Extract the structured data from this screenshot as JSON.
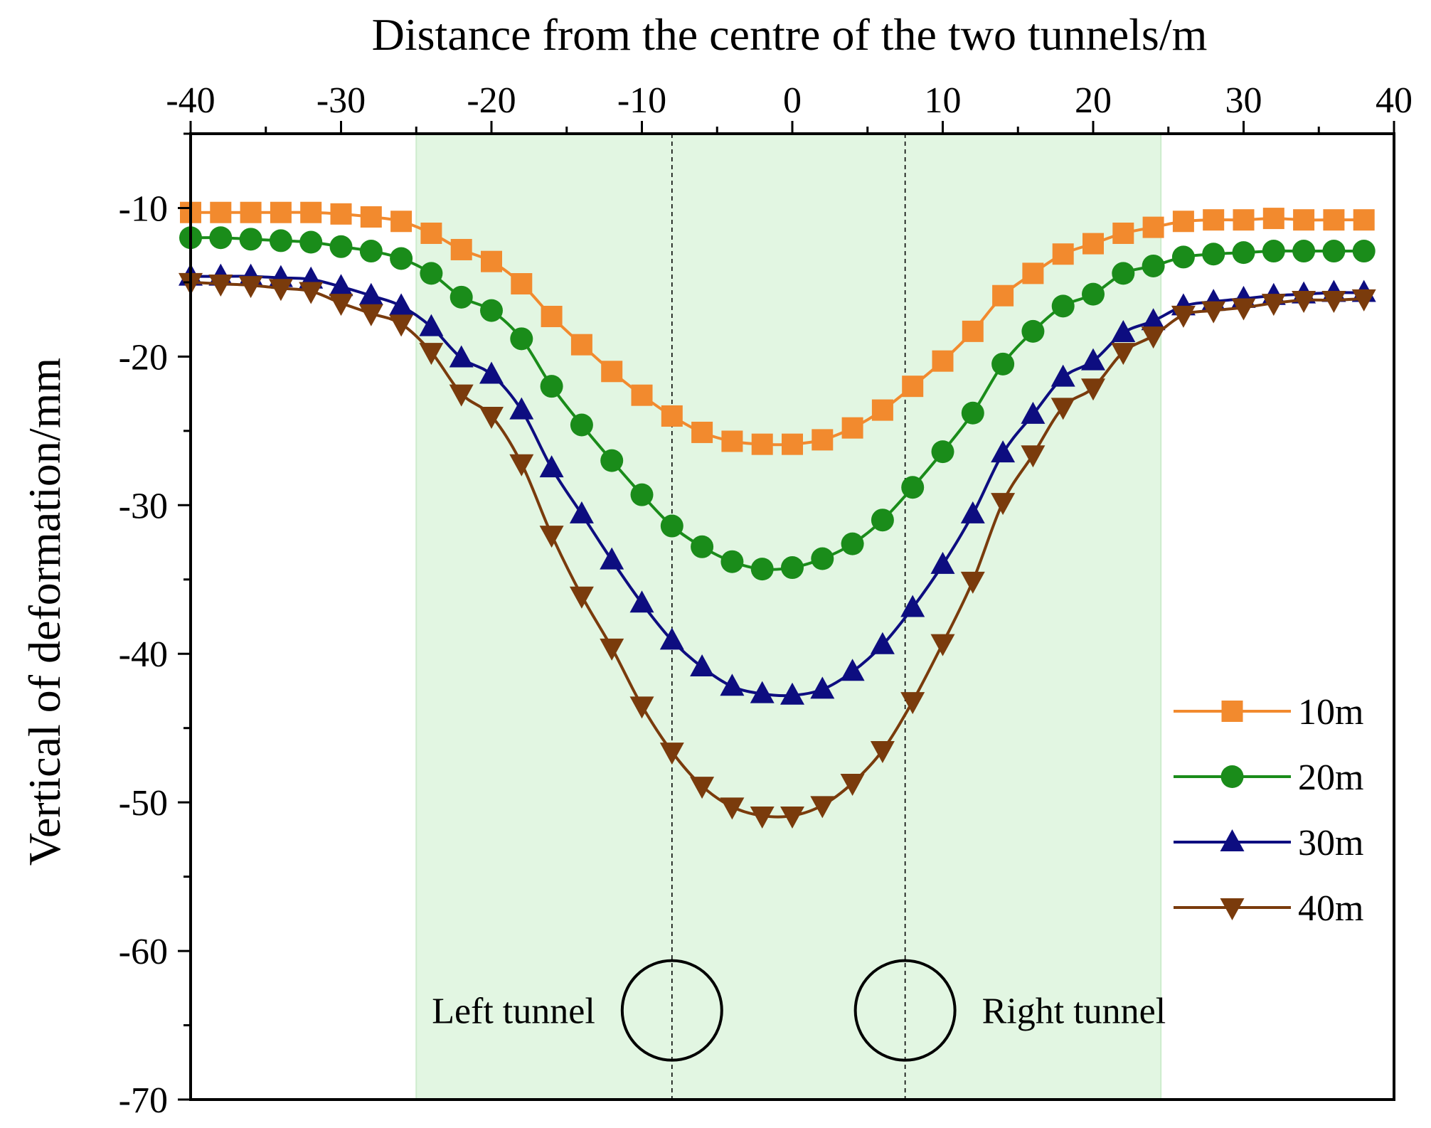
{
  "chart_data": {
    "type": "line",
    "title": "",
    "xlabel": "Distance from the centre of the two tunnels/m",
    "ylabel": "Vertical of deformation/mm",
    "xlim": [
      -40,
      40
    ],
    "ylim": [
      -70,
      -5
    ],
    "xticks": [
      -40,
      -30,
      -20,
      -10,
      0,
      10,
      20,
      30,
      40
    ],
    "yticks": [
      -10,
      -20,
      -30,
      -40,
      -50,
      -60,
      -70
    ],
    "x_axis_position": "top",
    "legend_position": "right",
    "shaded_region": {
      "x_start": -25,
      "x_end": 24.5,
      "color": "#e2f6e2"
    },
    "tunnels": [
      {
        "label": "Left tunnel",
        "x_center": -8,
        "y_center": -64
      },
      {
        "label": "Right tunnel",
        "x_center": 7.5,
        "y_center": -64
      }
    ],
    "x": [
      -40,
      -38,
      -36,
      -34,
      -32,
      -30,
      -28,
      -26,
      -24,
      -22,
      -20,
      -18,
      -16,
      -14,
      -12,
      -10,
      -8,
      -6,
      -4,
      -2,
      0,
      2,
      4,
      6,
      8,
      10,
      12,
      14,
      16,
      18,
      20,
      22,
      24,
      26,
      28,
      30,
      32,
      34,
      36,
      38
    ],
    "series": [
      {
        "name": "10m",
        "color": "#f28a2e",
        "marker": "square",
        "values": [
          -10.3,
          -10.3,
          -10.3,
          -10.3,
          -10.3,
          -10.4,
          -10.6,
          -10.9,
          -11.7,
          -12.8,
          -13.6,
          -15.1,
          -17.3,
          -19.2,
          -21.0,
          -22.6,
          -24.0,
          -25.1,
          -25.7,
          -25.9,
          -25.9,
          -25.6,
          -24.8,
          -23.6,
          -22.0,
          -20.3,
          -18.3,
          -15.9,
          -14.4,
          -13.1,
          -12.4,
          -11.7,
          -11.3,
          -10.9,
          -10.8,
          -10.8,
          -10.7,
          -10.8,
          -10.8,
          -10.8
        ]
      },
      {
        "name": "20m",
        "color": "#1a8c1a",
        "marker": "circle",
        "values": [
          -12.0,
          -12.0,
          -12.1,
          -12.2,
          -12.3,
          -12.6,
          -12.9,
          -13.4,
          -14.4,
          -16.0,
          -16.9,
          -18.8,
          -22.0,
          -24.6,
          -27.0,
          -29.3,
          -31.4,
          -32.8,
          -33.8,
          -34.3,
          -34.2,
          -33.6,
          -32.6,
          -31.0,
          -28.8,
          -26.4,
          -23.8,
          -20.5,
          -18.3,
          -16.6,
          -15.8,
          -14.4,
          -13.9,
          -13.3,
          -13.1,
          -13.0,
          -12.9,
          -12.9,
          -12.9,
          -12.9
        ]
      },
      {
        "name": "30m",
        "color": "#0d0d80",
        "marker": "triangle-up",
        "values": [
          -14.6,
          -14.6,
          -14.6,
          -14.7,
          -14.8,
          -15.3,
          -15.9,
          -16.6,
          -18.0,
          -20.1,
          -21.2,
          -23.6,
          -27.5,
          -30.6,
          -33.7,
          -36.6,
          -39.1,
          -40.9,
          -42.2,
          -42.7,
          -42.8,
          -42.4,
          -41.2,
          -39.4,
          -36.9,
          -34.0,
          -30.6,
          -26.5,
          -23.9,
          -21.4,
          -20.3,
          -18.4,
          -17.6,
          -16.6,
          -16.3,
          -16.1,
          -15.9,
          -15.8,
          -15.7,
          -15.7
        ]
      },
      {
        "name": "40m",
        "color": "#7a3b0c",
        "marker": "triangle-down",
        "values": [
          -15.0,
          -15.1,
          -15.2,
          -15.4,
          -15.6,
          -16.4,
          -17.1,
          -17.8,
          -19.7,
          -22.5,
          -24.0,
          -27.2,
          -32.0,
          -36.1,
          -39.6,
          -43.5,
          -46.6,
          -48.9,
          -50.3,
          -50.9,
          -50.9,
          -50.2,
          -48.7,
          -46.5,
          -43.2,
          -39.3,
          -35.1,
          -29.8,
          -26.6,
          -23.4,
          -22.1,
          -19.7,
          -18.6,
          -17.2,
          -16.9,
          -16.7,
          -16.4,
          -16.2,
          -16.2,
          -16.1
        ]
      }
    ]
  }
}
